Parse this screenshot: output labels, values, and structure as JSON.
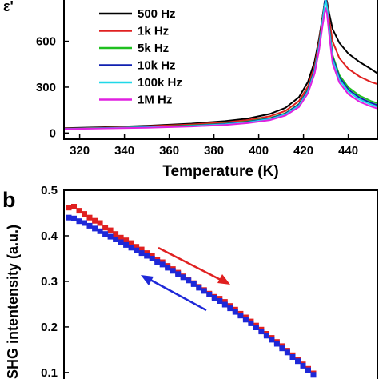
{
  "chart_data": [
    {
      "type": "line",
      "panel_label": "",
      "title": "",
      "xlabel": "Temperature (K)",
      "ylabel": "ε'",
      "xlim": [
        313,
        453
      ],
      "ylim": [
        -40,
        880
      ],
      "xticks": [
        320,
        340,
        360,
        380,
        400,
        420,
        440
      ],
      "yticks": [
        0,
        300,
        600
      ],
      "grid": false,
      "legend_position": "top-left",
      "series": [
        {
          "name": "500 Hz",
          "color": "#000000",
          "x": [
            313,
            330,
            350,
            370,
            385,
            395,
            405,
            412,
            418,
            422,
            425,
            427,
            428.5,
            429.5,
            430,
            430.5,
            431.5,
            433,
            436,
            440,
            445,
            450,
            453
          ],
          "y": [
            32,
            38,
            48,
            62,
            78,
            95,
            125,
            165,
            235,
            335,
            470,
            620,
            760,
            860,
            880,
            860,
            780,
            680,
            590,
            520,
            465,
            420,
            390
          ]
        },
        {
          "name": "1k Hz",
          "color": "#e02020",
          "x": [
            313,
            330,
            350,
            370,
            385,
            395,
            405,
            412,
            418,
            422,
            425,
            427,
            428.5,
            429.5,
            430,
            430.5,
            431.5,
            433,
            436,
            440,
            445,
            450,
            453
          ],
          "y": [
            30,
            35,
            44,
            56,
            70,
            85,
            110,
            145,
            210,
            305,
            440,
            600,
            750,
            860,
            880,
            850,
            740,
            600,
            490,
            420,
            370,
            335,
            320
          ]
        },
        {
          "name": "5k Hz",
          "color": "#20c020",
          "x": [
            313,
            330,
            350,
            370,
            385,
            395,
            405,
            412,
            418,
            422,
            425,
            427,
            428.5,
            429.5,
            430,
            430.5,
            431.5,
            433,
            436,
            440,
            445,
            450,
            453
          ],
          "y": [
            28,
            33,
            40,
            50,
            62,
            76,
            98,
            130,
            190,
            285,
            420,
            580,
            740,
            860,
            880,
            840,
            700,
            510,
            380,
            300,
            245,
            210,
            195
          ]
        },
        {
          "name": "10k Hz",
          "color": "#1020b0",
          "x": [
            313,
            330,
            350,
            370,
            385,
            395,
            405,
            412,
            418,
            422,
            425,
            427,
            428.5,
            429.5,
            430,
            430.5,
            431.5,
            433,
            436,
            440,
            445,
            450,
            453
          ],
          "y": [
            28,
            32,
            39,
            48,
            60,
            73,
            95,
            127,
            187,
            280,
            415,
            575,
            735,
            860,
            880,
            835,
            690,
            495,
            365,
            285,
            232,
            198,
            182
          ]
        },
        {
          "name": "100k Hz",
          "color": "#20d8e8",
          "x": [
            313,
            330,
            350,
            370,
            385,
            395,
            405,
            412,
            418,
            422,
            425,
            427,
            428.5,
            429.5,
            430,
            430.5,
            431.5,
            433,
            436,
            440,
            445,
            450,
            453
          ],
          "y": [
            27,
            31,
            37,
            46,
            57,
            70,
            91,
            122,
            180,
            272,
            405,
            565,
            725,
            840,
            860,
            820,
            675,
            480,
            350,
            272,
            220,
            188,
            172
          ]
        },
        {
          "name": "1M Hz",
          "color": "#e020e0",
          "x": [
            313,
            330,
            350,
            370,
            385,
            395,
            405,
            412,
            418,
            422,
            425,
            427,
            428.5,
            429.5,
            430,
            430.5,
            431.5,
            433,
            436,
            440,
            445,
            450,
            453
          ],
          "y": [
            26,
            30,
            35,
            43,
            53,
            65,
            85,
            115,
            170,
            260,
            390,
            545,
            700,
            790,
            810,
            780,
            640,
            455,
            330,
            255,
            205,
            175,
            160
          ]
        }
      ]
    },
    {
      "type": "scatter",
      "panel_label": "b",
      "title": "",
      "xlabel": "",
      "ylabel": "SHG intentensity (a.u.)",
      "ylim": [
        0.07,
        0.5
      ],
      "yticks": [
        0.1,
        0.2,
        0.3,
        0.4,
        0.5
      ],
      "ytick_labels": [
        "0.1",
        "0.2",
        "0.3",
        "0.4",
        "0.5"
      ],
      "grid": false,
      "annotations": [
        "red arrow pointing down-right along heating curve",
        "blue arrow pointing up-left along cooling curve"
      ],
      "series": [
        {
          "name": "",
          "color": "#e02020",
          "marker": "square",
          "y": [
            0.462,
            0.464,
            0.455,
            0.448,
            0.44,
            0.433,
            0.428,
            0.418,
            0.412,
            0.404,
            0.396,
            0.39,
            0.384,
            0.376,
            0.37,
            0.362,
            0.356,
            0.348,
            0.342,
            0.334,
            0.327,
            0.319,
            0.311,
            0.303,
            0.296,
            0.288,
            0.281,
            0.273,
            0.266,
            0.262,
            0.255,
            0.246,
            0.238,
            0.229,
            0.221,
            0.212,
            0.203,
            0.194,
            0.185,
            0.176,
            0.167,
            0.158,
            0.148,
            0.138,
            0.128,
            0.118,
            0.108,
            0.098
          ]
        },
        {
          "name": "",
          "color": "#1e28d8",
          "marker": "square",
          "y": [
            0.44,
            0.438,
            0.432,
            0.428,
            0.422,
            0.416,
            0.41,
            0.404,
            0.398,
            0.392,
            0.386,
            0.38,
            0.374,
            0.368,
            0.362,
            0.356,
            0.35,
            0.343,
            0.337,
            0.33,
            0.323,
            0.316,
            0.309,
            0.302,
            0.294,
            0.286,
            0.279,
            0.271,
            0.264,
            0.257,
            0.249,
            0.241,
            0.233,
            0.225,
            0.216,
            0.208,
            0.199,
            0.19,
            0.181,
            0.172,
            0.163,
            0.153,
            0.144,
            0.134,
            0.125,
            0.115,
            0.105,
            0.095
          ]
        }
      ]
    }
  ],
  "colors": {
    "axis": "#000000",
    "background": "#ffffff"
  }
}
